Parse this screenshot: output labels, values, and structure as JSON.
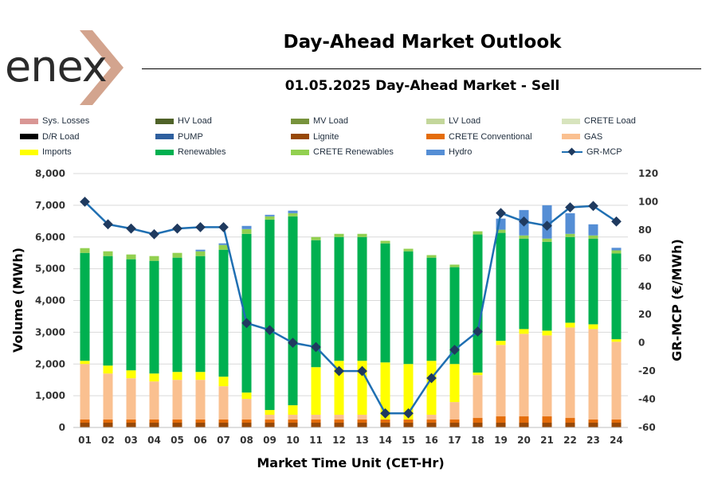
{
  "header": {
    "logo_text": "enex",
    "title": "Day-Ahead Market Outlook",
    "subtitle": "01.05.2025  Day-Ahead Market - Sell"
  },
  "chart_data": {
    "type": "bar",
    "stacked": true,
    "secondary_type": "line",
    "categories": [
      "01",
      "02",
      "03",
      "04",
      "05",
      "06",
      "07",
      "08",
      "09",
      "10",
      "11",
      "12",
      "13",
      "14",
      "15",
      "16",
      "17",
      "18",
      "19",
      "20",
      "21",
      "22",
      "23",
      "24"
    ],
    "xlabel": "Market Time Unit (CET-Hr)",
    "ylabel": "Volume (MWh)",
    "y2label": "GR-MCP (€/MWh)",
    "ylim": [
      0,
      8000
    ],
    "y2lim": [
      -60,
      120
    ],
    "yticks": [
      "0",
      "1,000",
      "2,000",
      "3,000",
      "4,000",
      "5,000",
      "6,000",
      "7,000",
      "8,000"
    ],
    "y2ticks": [
      "-60",
      "-40",
      "-20",
      "0",
      "20",
      "40",
      "60",
      "80",
      "100",
      "120"
    ],
    "series": [
      {
        "name": "Sys. Losses",
        "color": "#d99694",
        "values": [
          0,
          0,
          0,
          0,
          0,
          0,
          0,
          0,
          0,
          0,
          0,
          0,
          0,
          0,
          0,
          0,
          0,
          0,
          0,
          0,
          0,
          0,
          0,
          0
        ]
      },
      {
        "name": "HV Load",
        "color": "#4f6228",
        "values": [
          0,
          0,
          0,
          0,
          0,
          0,
          0,
          0,
          0,
          0,
          0,
          0,
          0,
          0,
          0,
          0,
          0,
          0,
          0,
          0,
          0,
          0,
          0,
          0
        ]
      },
      {
        "name": "MV Load",
        "color": "#77933c",
        "values": [
          0,
          0,
          0,
          0,
          0,
          0,
          0,
          0,
          0,
          0,
          0,
          0,
          0,
          0,
          0,
          0,
          0,
          0,
          0,
          0,
          0,
          0,
          0,
          0
        ]
      },
      {
        "name": "LV Load",
        "color": "#c3d69b",
        "values": [
          0,
          0,
          0,
          0,
          0,
          0,
          0,
          0,
          0,
          0,
          0,
          0,
          0,
          0,
          0,
          0,
          0,
          0,
          0,
          0,
          0,
          0,
          0,
          0
        ]
      },
      {
        "name": "CRETE Load",
        "color": "#d7e4bd",
        "values": [
          0,
          0,
          0,
          0,
          0,
          0,
          0,
          0,
          0,
          0,
          0,
          0,
          0,
          0,
          0,
          0,
          0,
          0,
          0,
          0,
          0,
          0,
          0,
          0
        ]
      },
      {
        "name": "D/R Load",
        "color": "#000000",
        "values": [
          0,
          0,
          0,
          0,
          0,
          0,
          0,
          0,
          0,
          0,
          0,
          0,
          0,
          0,
          0,
          0,
          0,
          0,
          0,
          0,
          0,
          0,
          0,
          0
        ]
      },
      {
        "name": "PUMP",
        "color": "#2e5f9e",
        "values": [
          0,
          0,
          0,
          0,
          0,
          0,
          0,
          0,
          0,
          0,
          0,
          0,
          0,
          0,
          0,
          0,
          0,
          0,
          0,
          0,
          0,
          0,
          0,
          0
        ]
      },
      {
        "name": "Lignite",
        "color": "#974806",
        "values": [
          150,
          150,
          150,
          150,
          150,
          150,
          150,
          150,
          150,
          150,
          150,
          150,
          150,
          150,
          150,
          150,
          150,
          150,
          150,
          150,
          150,
          150,
          150,
          150
        ]
      },
      {
        "name": "CRETE Conventional",
        "color": "#e46c0a",
        "values": [
          100,
          100,
          100,
          100,
          100,
          100,
          100,
          100,
          100,
          100,
          100,
          100,
          100,
          100,
          100,
          100,
          100,
          150,
          200,
          200,
          200,
          150,
          100,
          100
        ]
      },
      {
        "name": "GAS",
        "color": "#fac090",
        "values": [
          1750,
          1450,
          1300,
          1200,
          1250,
          1250,
          1050,
          650,
          150,
          150,
          150,
          150,
          150,
          0,
          0,
          150,
          550,
          1350,
          2250,
          2600,
          2550,
          2850,
          2850,
          2450
        ]
      },
      {
        "name": "Imports",
        "color": "#ffff00",
        "values": [
          100,
          250,
          250,
          250,
          250,
          250,
          300,
          200,
          150,
          300,
          1500,
          1700,
          1700,
          1800,
          1750,
          1700,
          1200,
          80,
          130,
          150,
          150,
          150,
          150,
          80
        ]
      },
      {
        "name": "Renewables",
        "color": "#00b050",
        "values": [
          3400,
          3450,
          3500,
          3550,
          3600,
          3650,
          4000,
          5000,
          6000,
          5950,
          4000,
          3900,
          3900,
          3750,
          3550,
          3250,
          3050,
          4350,
          3400,
          2850,
          2800,
          2700,
          2700,
          2700
        ]
      },
      {
        "name": "CRETE Renewables",
        "color": "#92d050",
        "values": [
          150,
          150,
          150,
          150,
          150,
          150,
          150,
          150,
          100,
          100,
          100,
          100,
          100,
          80,
          80,
          80,
          80,
          100,
          100,
          100,
          100,
          100,
          100,
          100
        ]
      },
      {
        "name": "Hydro",
        "color": "#558ed5",
        "values": [
          0,
          0,
          0,
          0,
          0,
          50,
          50,
          100,
          50,
          80,
          0,
          0,
          0,
          0,
          0,
          0,
          0,
          0,
          350,
          800,
          1050,
          650,
          350,
          80
        ]
      }
    ],
    "line": {
      "name": "GR-MCP",
      "color": "#1f6fb2",
      "marker_color": "#1f3a5f",
      "values": [
        100,
        84,
        81,
        77,
        81,
        82,
        82,
        14,
        9,
        0,
        -3,
        -20,
        -20,
        -50,
        -50,
        -25,
        -5,
        8,
        92,
        86,
        83,
        96,
        97,
        86
      ]
    }
  }
}
